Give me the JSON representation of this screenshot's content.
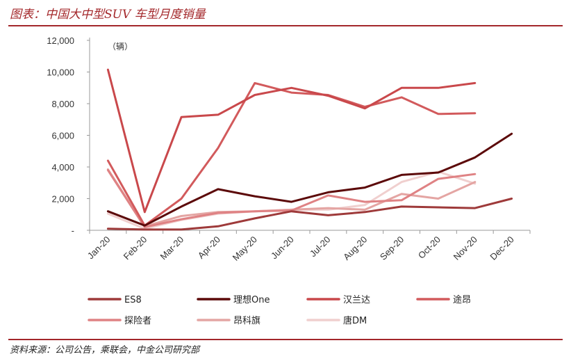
{
  "header": {
    "title": "图表：中国大中型SUV 车型月度销量"
  },
  "footer": {
    "source": "资料来源：公司公告，乘联会，中金公司研究部"
  },
  "chart_data": {
    "type": "line",
    "unit_label": "（辆）",
    "categories": [
      "Jan-20",
      "Feb-20",
      "Mar-20",
      "Apr-20",
      "May-20",
      "Jun-20",
      "Jul-20",
      "Aug-20",
      "Sep-20",
      "Oct-20",
      "Nov-20",
      "Dec-20"
    ],
    "y_ticks": [
      "-",
      "2,000",
      "4,000",
      "6,000",
      "8,000",
      "10,000",
      "12,000"
    ],
    "ylim": [
      0,
      12000
    ],
    "grid": false,
    "legend_position": "bottom",
    "series": [
      {
        "name": "ES8",
        "color": "#9e3a3a",
        "values": [
          100,
          50,
          50,
          250,
          750,
          1200,
          950,
          1150,
          1500,
          1450,
          1400,
          2000
        ]
      },
      {
        "name": "理想One",
        "color": "#5c0a0a",
        "values": [
          1200,
          300,
          1500,
          2600,
          2150,
          1800,
          2400,
          2700,
          3500,
          3650,
          4600,
          6100
        ]
      },
      {
        "name": "汉兰达",
        "color": "#c9484b",
        "values": [
          10150,
          1150,
          7150,
          7300,
          8550,
          9000,
          8500,
          7700,
          9000,
          9000,
          9300,
          null
        ]
      },
      {
        "name": "途昂",
        "color": "#d25a5c",
        "values": [
          4400,
          300,
          2000,
          5200,
          9300,
          8700,
          8550,
          7800,
          8400,
          7350,
          7400,
          null
        ]
      },
      {
        "name": "探险者",
        "color": "#df8284",
        "values": [
          3800,
          200,
          700,
          1100,
          1200,
          1250,
          2200,
          1800,
          1900,
          3250,
          3550,
          null
        ]
      },
      {
        "name": "昂科旗",
        "color": "#e4a5a3",
        "values": [
          3850,
          250,
          900,
          1150,
          1200,
          1300,
          1400,
          1300,
          2300,
          2000,
          3050,
          null
        ]
      },
      {
        "name": "唐DM",
        "color": "#f0cfce",
        "values": [
          1050,
          100,
          650,
          1050,
          1200,
          1300,
          1300,
          1600,
          3050,
          3700,
          2950,
          null
        ]
      }
    ]
  }
}
